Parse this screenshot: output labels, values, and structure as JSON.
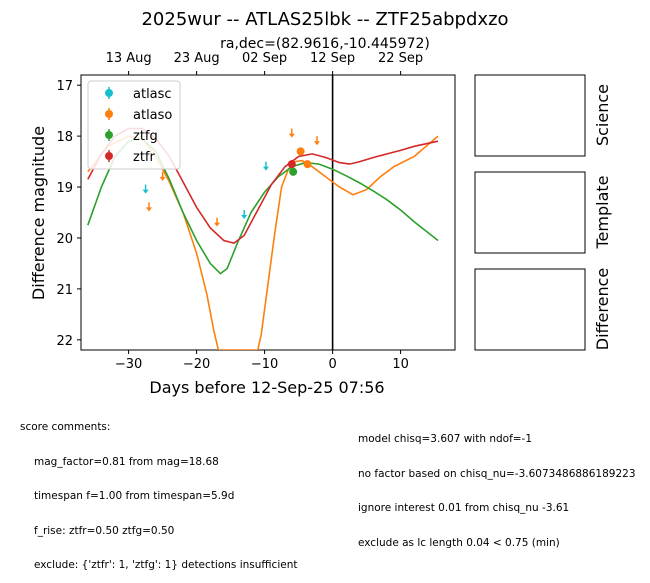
{
  "title": "2025wur -- ATLAS25lbk -- ZTF25abpdxzo",
  "subtitle": "ra,dec=(82.9616,-10.445972)",
  "chart_data": {
    "type": "line",
    "xlabel": "Days before 12-Sep-25 07:56",
    "ylabel": "Difference magnitude",
    "xlim": [
      -37,
      18
    ],
    "ylim": [
      22.2,
      16.8
    ],
    "y_inverted": true,
    "x_ticks": [
      -30,
      -20,
      -10,
      0,
      10
    ],
    "y_ticks": [
      17,
      18,
      19,
      20,
      21,
      22
    ],
    "top_axis": {
      "ticks": [
        {
          "x": -30,
          "label": "13 Aug"
        },
        {
          "x": -20,
          "label": "23 Aug"
        },
        {
          "x": -10,
          "label": "02 Sep"
        },
        {
          "x": 0,
          "label": "12 Sep"
        },
        {
          "x": 10,
          "label": "22 Sep"
        }
      ]
    },
    "vline_x": 0,
    "legend": {
      "position": "top-left"
    },
    "series": [
      {
        "name": "atlasc",
        "color": "#17becf",
        "detections": [],
        "upper_limits": [
          [
            -27.5,
            19.05
          ],
          [
            -13,
            19.55
          ],
          [
            -9.8,
            18.6
          ]
        ],
        "model": []
      },
      {
        "name": "atlaso",
        "color": "#ff7f0e",
        "detections": [
          [
            -4.7,
            18.3
          ],
          [
            -3.7,
            18.55
          ]
        ],
        "upper_limits": [
          [
            -27,
            19.4
          ],
          [
            -25,
            18.8
          ],
          [
            -17,
            19.7
          ],
          [
            -6,
            17.95
          ],
          [
            -2.3,
            18.1
          ]
        ],
        "model": [
          [
            -36,
            18.7
          ],
          [
            -33,
            18.2
          ],
          [
            -30,
            18.0
          ],
          [
            -28,
            18.05
          ],
          [
            -26,
            18.4
          ],
          [
            -24,
            18.9
          ],
          [
            -22,
            19.5
          ],
          [
            -20,
            20.3
          ],
          [
            -18.5,
            21.1
          ],
          [
            -17.5,
            21.8
          ],
          [
            -16.8,
            22.2
          ],
          [
            -11,
            22.2
          ],
          [
            -10.5,
            21.9
          ],
          [
            -9.5,
            20.9
          ],
          [
            -8.5,
            19.9
          ],
          [
            -7.5,
            19.0
          ],
          [
            -6.5,
            18.65
          ],
          [
            -5.5,
            18.5
          ],
          [
            -4.5,
            18.48
          ],
          [
            -3,
            18.6
          ],
          [
            -1,
            18.8
          ],
          [
            1,
            19.0
          ],
          [
            3,
            19.15
          ],
          [
            5,
            19.05
          ],
          [
            7,
            18.8
          ],
          [
            9,
            18.6
          ],
          [
            12,
            18.4
          ],
          [
            15.5,
            18.0
          ]
        ]
      },
      {
        "name": "ztfg",
        "color": "#2ca02c",
        "detections": [
          [
            -5.8,
            18.7
          ]
        ],
        "upper_limits": [],
        "model": [
          [
            -36,
            19.75
          ],
          [
            -34,
            19.0
          ],
          [
            -32,
            18.4
          ],
          [
            -30,
            18.1
          ],
          [
            -28,
            18.05
          ],
          [
            -26,
            18.3
          ],
          [
            -24,
            18.85
          ],
          [
            -22,
            19.5
          ],
          [
            -20,
            20.05
          ],
          [
            -18,
            20.5
          ],
          [
            -16.5,
            20.7
          ],
          [
            -15.5,
            20.6
          ],
          [
            -14,
            20.1
          ],
          [
            -12,
            19.5
          ],
          [
            -10,
            19.1
          ],
          [
            -8,
            18.8
          ],
          [
            -6,
            18.6
          ],
          [
            -4,
            18.52
          ],
          [
            -2,
            18.55
          ],
          [
            0,
            18.65
          ],
          [
            2,
            18.78
          ],
          [
            4,
            18.92
          ],
          [
            6,
            19.08
          ],
          [
            8,
            19.25
          ],
          [
            10,
            19.45
          ],
          [
            12,
            19.68
          ],
          [
            15.5,
            20.05
          ]
        ]
      },
      {
        "name": "ztfr",
        "color": "#d62728",
        "detections": [
          [
            -6,
            18.55
          ]
        ],
        "upper_limits": [],
        "model": [
          [
            -36,
            18.85
          ],
          [
            -34,
            18.35
          ],
          [
            -32,
            18.0
          ],
          [
            -30,
            17.85
          ],
          [
            -28,
            17.85
          ],
          [
            -26,
            18.05
          ],
          [
            -24,
            18.4
          ],
          [
            -22,
            18.9
          ],
          [
            -20,
            19.4
          ],
          [
            -18,
            19.8
          ],
          [
            -16,
            20.05
          ],
          [
            -14.5,
            20.1
          ],
          [
            -13,
            19.95
          ],
          [
            -11,
            19.45
          ],
          [
            -9,
            18.95
          ],
          [
            -7,
            18.6
          ],
          [
            -5,
            18.4
          ],
          [
            -3,
            18.35
          ],
          [
            -1,
            18.42
          ],
          [
            1,
            18.52
          ],
          [
            2.5,
            18.55
          ],
          [
            4,
            18.5
          ],
          [
            6,
            18.42
          ],
          [
            8,
            18.35
          ],
          [
            10,
            18.28
          ],
          [
            12,
            18.2
          ],
          [
            15.5,
            18.1
          ]
        ]
      }
    ]
  },
  "panels": [
    "Science",
    "Template",
    "Difference"
  ],
  "score_comments": {
    "heading": "score comments:",
    "left": [
      "mag_factor=0.81 from mag=18.68",
      "timespan f=1.00 from timespan=5.9d",
      "f_rise: ztfr=0.50 ztfg=0.50",
      "exclude: {'ztfr': 1, 'ztfg': 1} detections insufficient"
    ],
    "right": [
      "model chisq=3.607 with ndof=-1",
      "no factor based on chisq_nu=-3.6073486886189223",
      "ignore interest 0.01 from chisq_nu -3.61",
      "exclude as lc length 0.04 < 0.75 (min)"
    ]
  }
}
